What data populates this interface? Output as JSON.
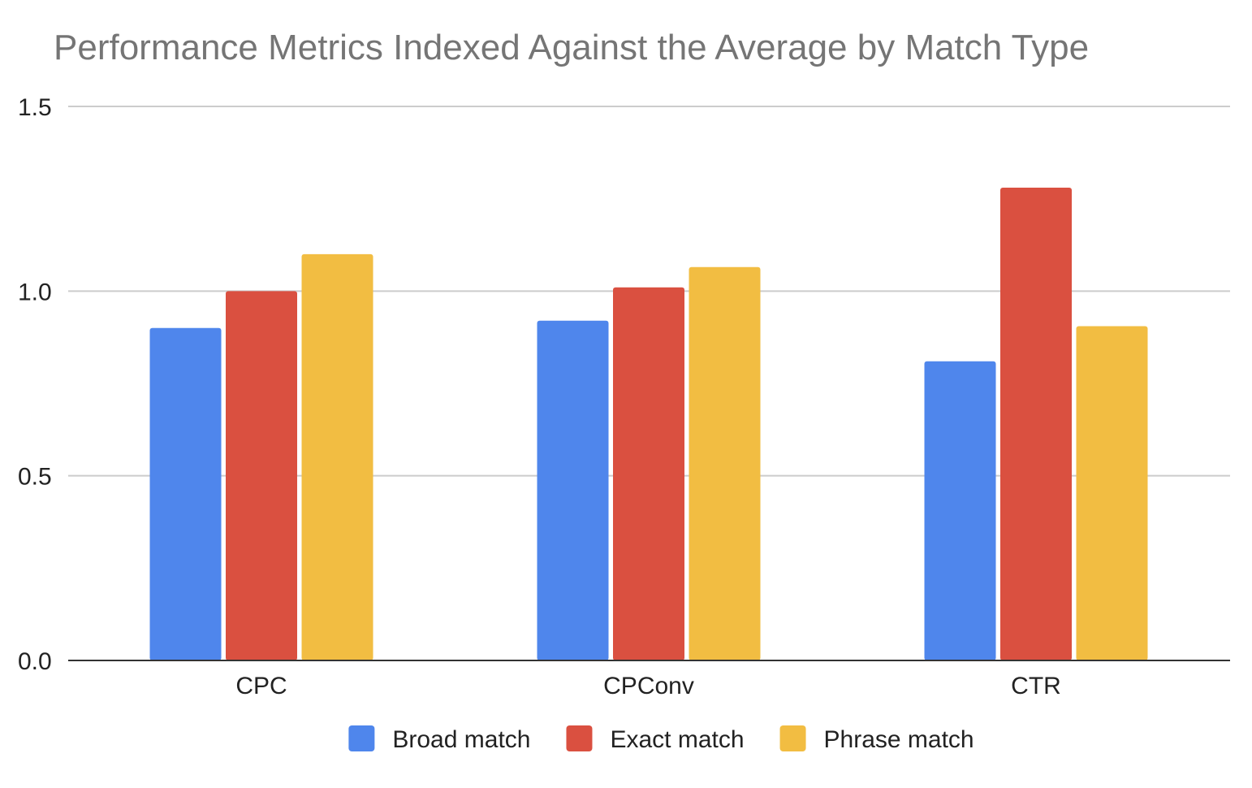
{
  "chart_data": {
    "type": "bar",
    "title": "Performance Metrics Indexed Against the Average by Match Type",
    "xlabel": "",
    "ylabel": "",
    "categories": [
      "CPC",
      "CPConv",
      "CTR"
    ],
    "series": [
      {
        "name": "Broad match",
        "color": "#4F86EC",
        "values": [
          0.9,
          0.92,
          0.81
        ]
      },
      {
        "name": "Exact match",
        "color": "#DA5040",
        "values": [
          1.0,
          1.01,
          1.28
        ]
      },
      {
        "name": "Phrase match",
        "color": "#F2BD42",
        "values": [
          1.1,
          1.065,
          0.905
        ]
      }
    ],
    "ylim": [
      0,
      1.5
    ],
    "yticks": [
      "0.0",
      "0.5",
      "1.0",
      "1.5"
    ],
    "grid": true,
    "legend_position": "bottom"
  }
}
